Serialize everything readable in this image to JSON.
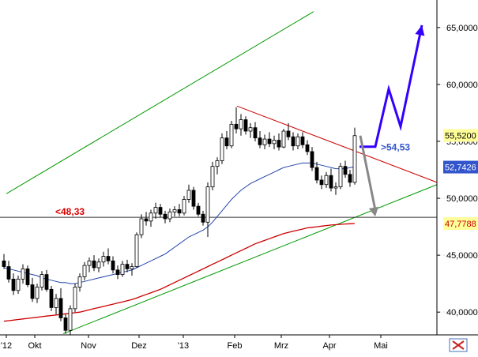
{
  "chart_data": {
    "type": "candlestick",
    "x_ticks": [
      "'12",
      "Okt",
      "Nov",
      "Dez",
      "'13",
      "Feb",
      "Mrz",
      "Apr",
      "Mai"
    ],
    "y_ticks": [
      "40,0000",
      "45,0000",
      "50,0000",
      "55,0000",
      "60,0000",
      "65,0000"
    ],
    "ylim": [
      38,
      67
    ],
    "price_badges": [
      {
        "label": "55,5200",
        "value": 55.52,
        "bg": "#ffff99",
        "fg": "#000000"
      },
      {
        "label": "52,7426",
        "value": 52.74,
        "bg": "#3355cc",
        "fg": "#ffffff"
      },
      {
        "label": "47,7788",
        "value": 47.78,
        "bg": "#ffff99",
        "fg": "#cc0000"
      }
    ],
    "annotations": [
      {
        "label": "<48,33",
        "value": 48.33,
        "color": "#dd0000"
      },
      {
        "label": ">54,53",
        "value": 54.53,
        "color": "#3355cc"
      }
    ],
    "colors": {
      "candles": "#000000",
      "ma_short": "#2244aa",
      "ma_long": "#cc0000",
      "channel": "#009900",
      "resistance": "#cc0000",
      "support_line": "#333333",
      "scenario_up": "#3300ff",
      "scenario_down": "#888888",
      "badge_grid": "#dddddd"
    },
    "series": [
      {
        "values": [
          [
            44.5,
            45.1,
            43.8,
            44.0
          ],
          [
            44.0,
            44.5,
            42.6,
            42.9
          ],
          [
            42.9,
            43.4,
            41.5,
            41.9
          ],
          [
            41.9,
            43.2,
            41.6,
            42.9
          ],
          [
            42.9,
            44.2,
            42.5,
            43.8
          ],
          [
            43.8,
            44.1,
            42.2,
            42.4
          ],
          [
            42.4,
            43.0,
            40.9,
            41.2
          ],
          [
            41.2,
            42.5,
            40.8,
            42.2
          ],
          [
            42.2,
            43.6,
            41.9,
            43.3
          ],
          [
            43.3,
            43.7,
            41.8,
            42.0
          ],
          [
            42.0,
            42.3,
            40.1,
            40.4
          ],
          [
            40.4,
            41.6,
            39.8,
            41.2
          ],
          [
            41.2,
            42.1,
            39.2,
            39.5
          ],
          [
            39.5,
            39.8,
            38.1,
            38.4
          ],
          [
            38.4,
            40.6,
            38.0,
            40.3
          ],
          [
            40.3,
            42.5,
            40.0,
            42.2
          ],
          [
            42.2,
            43.4,
            41.8,
            43.1
          ],
          [
            43.1,
            44.4,
            42.8,
            44.1
          ],
          [
            44.1,
            44.8,
            43.5,
            44.5
          ],
          [
            44.5,
            45.0,
            43.6,
            43.9
          ],
          [
            43.9,
            44.7,
            43.5,
            44.4
          ],
          [
            44.4,
            45.3,
            44.0,
            44.9
          ],
          [
            44.9,
            45.6,
            44.2,
            44.5
          ],
          [
            44.5,
            44.9,
            43.4,
            43.7
          ],
          [
            43.7,
            44.1,
            42.9,
            43.3
          ],
          [
            43.3,
            44.5,
            43.1,
            44.2
          ],
          [
            44.2,
            44.6,
            43.5,
            43.8
          ],
          [
            43.8,
            44.3,
            43.2,
            44.0
          ],
          [
            44.0,
            47.0,
            43.9,
            46.8
          ],
          [
            46.8,
            48.6,
            46.5,
            48.2
          ],
          [
            48.2,
            48.8,
            47.6,
            48.0
          ],
          [
            48.0,
            49.0,
            47.5,
            48.7
          ],
          [
            48.7,
            49.6,
            48.2,
            49.2
          ],
          [
            49.2,
            49.5,
            48.3,
            48.6
          ],
          [
            48.6,
            48.9,
            47.8,
            48.2
          ],
          [
            48.2,
            49.1,
            47.9,
            48.8
          ],
          [
            48.8,
            49.3,
            48.4,
            49.0
          ],
          [
            49.0,
            49.5,
            48.4,
            48.7
          ],
          [
            48.7,
            50.2,
            48.5,
            49.9
          ],
          [
            49.9,
            51.2,
            49.6,
            50.7
          ],
          [
            50.7,
            51.0,
            49.0,
            49.3
          ],
          [
            49.3,
            49.6,
            48.4,
            48.6
          ],
          [
            48.6,
            48.9,
            47.6,
            47.9
          ],
          [
            47.9,
            51.4,
            46.6,
            51.0
          ],
          [
            51.0,
            53.2,
            50.7,
            52.8
          ],
          [
            52.8,
            53.6,
            52.1,
            53.3
          ],
          [
            53.3,
            55.7,
            53.0,
            55.3
          ],
          [
            55.3,
            55.9,
            54.3,
            54.6
          ],
          [
            54.6,
            56.8,
            54.4,
            56.5
          ],
          [
            56.5,
            58.0,
            55.7,
            56.1
          ],
          [
            56.1,
            57.4,
            55.5,
            56.9
          ],
          [
            56.9,
            57.2,
            55.6,
            55.9
          ],
          [
            55.9,
            56.6,
            55.3,
            56.2
          ],
          [
            56.2,
            56.7,
            55.0,
            55.3
          ],
          [
            55.3,
            55.9,
            54.4,
            54.7
          ],
          [
            54.7,
            55.6,
            54.3,
            55.2
          ],
          [
            55.2,
            55.8,
            54.5,
            54.8
          ],
          [
            54.8,
            55.5,
            54.3,
            55.1
          ],
          [
            55.1,
            55.7,
            54.2,
            54.5
          ],
          [
            54.5,
            56.1,
            54.4,
            55.9
          ],
          [
            55.9,
            56.6,
            55.1,
            55.4
          ],
          [
            55.4,
            55.8,
            54.2,
            54.6
          ],
          [
            54.6,
            55.7,
            54.3,
            55.4
          ],
          [
            55.4,
            55.8,
            54.4,
            54.7
          ],
          [
            54.7,
            55.1,
            53.8,
            54.1
          ],
          [
            54.1,
            54.5,
            52.4,
            52.7
          ],
          [
            52.7,
            53.2,
            51.3,
            51.6
          ],
          [
            51.6,
            52.0,
            50.8,
            51.2
          ],
          [
            51.2,
            52.3,
            50.9,
            52.0
          ],
          [
            52.0,
            52.6,
            50.6,
            50.9
          ],
          [
            50.9,
            51.4,
            50.3,
            51.0
          ],
          [
            51.0,
            53.1,
            50.8,
            52.8
          ],
          [
            52.8,
            53.3,
            51.8,
            52.1
          ],
          [
            52.1,
            52.5,
            51.0,
            51.4
          ],
          [
            51.4,
            56.2,
            51.2,
            55.5
          ]
        ]
      },
      {
        "values": [
          43.9,
          43.8,
          43.7,
          43.6,
          43.5,
          43.4,
          43.3,
          43.2,
          43.0,
          42.9,
          42.8,
          42.7,
          42.6,
          42.6,
          42.5,
          42.5,
          42.6,
          42.7,
          42.8,
          42.9,
          43.0,
          43.1,
          43.2,
          43.3,
          43.4,
          43.5,
          43.6,
          43.7,
          43.9,
          44.1,
          44.3,
          44.5,
          44.7,
          44.9,
          45.1,
          45.4,
          45.7,
          46.0,
          46.3,
          46.6,
          46.8,
          47.0,
          47.2,
          47.5,
          47.9,
          48.4,
          48.9,
          49.4,
          49.9,
          50.3,
          50.7,
          51.0,
          51.3,
          51.5,
          51.7,
          51.9,
          52.1,
          52.3,
          52.5,
          52.7,
          52.8,
          52.9,
          53.0,
          53.1,
          53.1,
          53.1,
          53.0,
          52.9,
          52.8,
          52.7,
          52.6,
          52.6,
          52.6,
          52.7,
          52.74
        ]
      },
      {
        "values": [
          39.2,
          39.25,
          39.3,
          39.35,
          39.4,
          39.45,
          39.5,
          39.55,
          39.6,
          39.65,
          39.7,
          39.75,
          39.8,
          39.85,
          39.9,
          39.95,
          40.0,
          40.1,
          40.2,
          40.3,
          40.4,
          40.5,
          40.6,
          40.7,
          40.8,
          40.9,
          41.0,
          41.1,
          41.25,
          41.4,
          41.55,
          41.7,
          41.85,
          42.0,
          42.2,
          42.4,
          42.6,
          42.8,
          43.0,
          43.2,
          43.4,
          43.6,
          43.8,
          44.0,
          44.2,
          44.4,
          44.6,
          44.8,
          45.0,
          45.2,
          45.4,
          45.6,
          45.8,
          46.0,
          46.15,
          46.3,
          46.45,
          46.6,
          46.75,
          46.9,
          47.0,
          47.1,
          47.2,
          47.3,
          47.4,
          47.45,
          47.5,
          47.55,
          47.6,
          47.65,
          47.68,
          47.71,
          47.74,
          47.76,
          47.78
        ]
      }
    ]
  }
}
